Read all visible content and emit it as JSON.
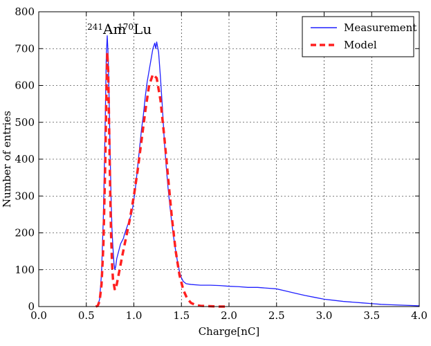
{
  "chart_data": {
    "type": "line",
    "title": "",
    "xlabel": "Charge[nC]",
    "ylabel": "Number of entries",
    "xlim": [
      0.0,
      4.0
    ],
    "ylim": [
      0,
      800
    ],
    "xticks": [
      0.0,
      0.5,
      1.0,
      1.5,
      2.0,
      2.5,
      3.0,
      3.5,
      4.0
    ],
    "xtick_labels": [
      "0.0",
      "0.5",
      "1.0",
      "1.5",
      "2.0",
      "2.5",
      "3.0",
      "3.5",
      "4.0"
    ],
    "yticks": [
      0,
      100,
      200,
      300,
      400,
      500,
      600,
      700,
      800
    ],
    "ytick_labels": [
      "0",
      "100",
      "200",
      "300",
      "400",
      "500",
      "600",
      "700",
      "800"
    ],
    "grid": true,
    "legend_position": "top-right",
    "annotations": [
      {
        "sup": "241",
        "text": "Am",
        "x": 0.51,
        "y": 755
      },
      {
        "sup": "170",
        "text": "Lu",
        "x": 0.83,
        "y": 755
      }
    ],
    "series": [
      {
        "name": "Measurement",
        "style": "solid",
        "color": "#1f1fff",
        "points": [
          [
            0.6,
            0
          ],
          [
            0.62,
            2
          ],
          [
            0.64,
            20
          ],
          [
            0.66,
            90
          ],
          [
            0.68,
            250
          ],
          [
            0.69,
            380
          ],
          [
            0.7,
            520
          ],
          [
            0.71,
            680
          ],
          [
            0.72,
            735
          ],
          [
            0.73,
            680
          ],
          [
            0.74,
            560
          ],
          [
            0.75,
            420
          ],
          [
            0.76,
            300
          ],
          [
            0.77,
            210
          ],
          [
            0.78,
            160
          ],
          [
            0.79,
            120
          ],
          [
            0.8,
            100
          ],
          [
            0.81,
            110
          ],
          [
            0.82,
            130
          ],
          [
            0.83,
            140
          ],
          [
            0.84,
            150
          ],
          [
            0.85,
            160
          ],
          [
            0.86,
            170
          ],
          [
            0.87,
            175
          ],
          [
            0.88,
            180
          ],
          [
            0.89,
            185
          ],
          [
            0.9,
            195
          ],
          [
            0.92,
            210
          ],
          [
            0.94,
            225
          ],
          [
            0.96,
            240
          ],
          [
            0.98,
            255
          ],
          [
            1.0,
            290
          ],
          [
            1.02,
            330
          ],
          [
            1.04,
            380
          ],
          [
            1.06,
            430
          ],
          [
            1.08,
            480
          ],
          [
            1.1,
            520
          ],
          [
            1.12,
            570
          ],
          [
            1.14,
            610
          ],
          [
            1.16,
            640
          ],
          [
            1.18,
            670
          ],
          [
            1.2,
            700
          ],
          [
            1.22,
            715
          ],
          [
            1.23,
            700
          ],
          [
            1.24,
            718
          ],
          [
            1.26,
            690
          ],
          [
            1.28,
            620
          ],
          [
            1.3,
            540
          ],
          [
            1.32,
            450
          ],
          [
            1.34,
            380
          ],
          [
            1.36,
            320
          ],
          [
            1.38,
            270
          ],
          [
            1.4,
            225
          ],
          [
            1.42,
            185
          ],
          [
            1.44,
            150
          ],
          [
            1.46,
            120
          ],
          [
            1.48,
            95
          ],
          [
            1.5,
            78
          ],
          [
            1.52,
            68
          ],
          [
            1.55,
            62
          ],
          [
            1.6,
            60
          ],
          [
            1.7,
            58
          ],
          [
            1.8,
            58
          ],
          [
            1.9,
            57
          ],
          [
            2.0,
            55
          ],
          [
            2.1,
            54
          ],
          [
            2.2,
            52
          ],
          [
            2.3,
            52
          ],
          [
            2.4,
            50
          ],
          [
            2.5,
            48
          ],
          [
            2.6,
            42
          ],
          [
            2.7,
            36
          ],
          [
            2.8,
            30
          ],
          [
            2.9,
            25
          ],
          [
            3.0,
            20
          ],
          [
            3.1,
            17
          ],
          [
            3.2,
            14
          ],
          [
            3.3,
            12
          ],
          [
            3.4,
            10
          ],
          [
            3.5,
            8
          ],
          [
            3.6,
            6
          ],
          [
            3.7,
            5
          ],
          [
            3.8,
            4
          ],
          [
            3.9,
            3
          ],
          [
            4.0,
            2
          ]
        ]
      },
      {
        "name": "Model",
        "style": "dashed",
        "color": "#ff2020",
        "points": [
          [
            0.6,
            0
          ],
          [
            0.62,
            2
          ],
          [
            0.64,
            15
          ],
          [
            0.66,
            60
          ],
          [
            0.68,
            170
          ],
          [
            0.7,
            400
          ],
          [
            0.71,
            560
          ],
          [
            0.72,
            690
          ],
          [
            0.73,
            640
          ],
          [
            0.74,
            490
          ],
          [
            0.75,
            330
          ],
          [
            0.76,
            200
          ],
          [
            0.77,
            120
          ],
          [
            0.78,
            75
          ],
          [
            0.8,
            45
          ],
          [
            0.82,
            60
          ],
          [
            0.85,
            100
          ],
          [
            0.88,
            140
          ],
          [
            0.92,
            190
          ],
          [
            0.96,
            240
          ],
          [
            1.0,
            300
          ],
          [
            1.04,
            370
          ],
          [
            1.08,
            450
          ],
          [
            1.12,
            530
          ],
          [
            1.16,
            600
          ],
          [
            1.2,
            630
          ],
          [
            1.24,
            620
          ],
          [
            1.28,
            560
          ],
          [
            1.32,
            460
          ],
          [
            1.36,
            350
          ],
          [
            1.4,
            240
          ],
          [
            1.44,
            150
          ],
          [
            1.48,
            85
          ],
          [
            1.52,
            45
          ],
          [
            1.56,
            22
          ],
          [
            1.6,
            10
          ],
          [
            1.65,
            4
          ],
          [
            1.7,
            2
          ],
          [
            1.8,
            1
          ],
          [
            1.9,
            0
          ],
          [
            2.0,
            0
          ]
        ]
      }
    ]
  }
}
